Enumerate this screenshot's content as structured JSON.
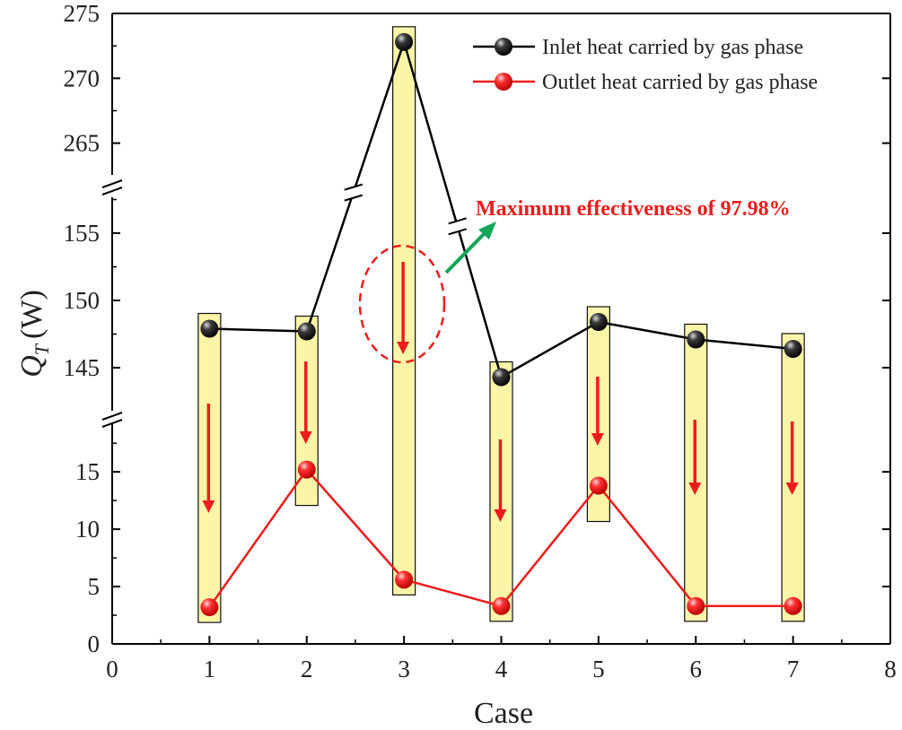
{
  "chart_data": {
    "type": "line",
    "xlabel": "Case",
    "ylabel_main": "Q",
    "ylabel_sub": "T",
    "ylabel_unit": "(W)",
    "xlim": [
      0,
      8
    ],
    "x_ticks": [
      "0",
      "1",
      "2",
      "3",
      "4",
      "5",
      "6",
      "7",
      "8"
    ],
    "y_segments": [
      {
        "range": [
          0,
          19
        ],
        "ticks": [
          "0",
          "5",
          "10",
          "15"
        ],
        "tick_values": [
          0,
          5,
          10,
          15
        ]
      },
      {
        "range": [
          142,
          159
        ],
        "ticks": [
          "145",
          "150",
          "155"
        ],
        "tick_values": [
          145,
          150,
          155
        ]
      },
      {
        "range": [
          262,
          275
        ],
        "ticks": [
          "265",
          "270",
          "275"
        ],
        "tick_values": [
          265,
          270,
          275
        ]
      }
    ],
    "x": [
      1,
      2,
      3,
      4,
      5,
      6,
      7
    ],
    "series": [
      {
        "name": "Inlet heat carried by gas phase",
        "color": "#000000",
        "values": [
          147.9,
          147.7,
          272.8,
          144.3,
          148.4,
          147.1,
          146.4
        ]
      },
      {
        "name": "Outlet heat carried by gas phase",
        "color": "#ee1c1c",
        "values": [
          3.2,
          15.2,
          5.6,
          3.3,
          13.8,
          3.3,
          3.3
        ]
      }
    ],
    "annotation": "Maximum effectiveness of 97.98%",
    "annotation_color": "#ee1c1c",
    "highlight_color": "#fbf5a8",
    "arrow_color": "#ee1c1c",
    "pointer_color": "#13a65a"
  }
}
